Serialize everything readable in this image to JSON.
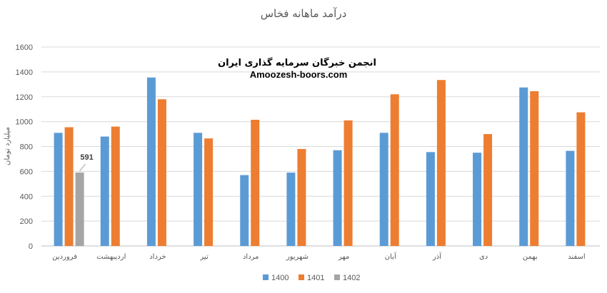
{
  "chart_data": {
    "type": "bar",
    "title": "درآمد ماهانه فخاس",
    "ylabel": "میلیارد تومان",
    "xlabel": "",
    "ylim": [
      0,
      1600
    ],
    "yticks": [
      0,
      200,
      400,
      600,
      800,
      1000,
      1200,
      1400,
      1600
    ],
    "grid": true,
    "legend_position": "bottom",
    "categories": [
      "فروردین",
      "اردیبهشت",
      "خرداد",
      "تیر",
      "مرداد",
      "شهریور",
      "مهر",
      "آبان",
      "آذر",
      "دی",
      "بهمن",
      "اسفند"
    ],
    "series": [
      {
        "name": "1400",
        "color": "#5B9BD5",
        "values": [
          910,
          880,
          1355,
          910,
          570,
          590,
          770,
          910,
          755,
          750,
          1275,
          765
        ]
      },
      {
        "name": "1401",
        "color": "#ED7D31",
        "values": [
          955,
          960,
          1180,
          865,
          1015,
          780,
          1010,
          1220,
          1335,
          900,
          1245,
          1075
        ]
      },
      {
        "name": "1402",
        "color": "#A5A5A5",
        "values": [
          591,
          null,
          null,
          null,
          null,
          null,
          null,
          null,
          null,
          null,
          null,
          null
        ]
      }
    ],
    "annotations": [
      {
        "text": "591"
      }
    ],
    "watermark": {
      "line1": "انجمن خبرگان سرمایه گذاری ایران",
      "line2": "Amoozesh-boors.com"
    }
  }
}
